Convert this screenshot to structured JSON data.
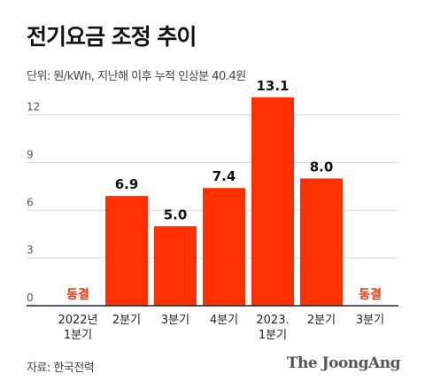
{
  "title": "전기요금 조정 추이",
  "subtitle": "단위: 원/kWh, 지난해 이후 누적 인상분 40.4원",
  "source": "자료: 한국전력",
  "logo": "The JoongAng",
  "colors": {
    "bar": "#ff3000",
    "frozen_text": "#ff3000",
    "axis": "#222222",
    "grid": "#d9d9d9",
    "tick": "#555555"
  },
  "chart_data": {
    "type": "bar",
    "categories": [
      "2022년\n1분기",
      "2분기",
      "3분기",
      "4분기",
      "2023.\n1분기",
      "2분기",
      "3분기"
    ],
    "values": [
      0,
      6.9,
      5.0,
      7.4,
      13.1,
      8.0,
      0
    ],
    "value_labels": [
      "동결",
      "6.9",
      "5.0",
      "7.4",
      "13.1",
      "8.0",
      "동결"
    ],
    "frozen": [
      true,
      false,
      false,
      false,
      false,
      false,
      true
    ],
    "yticks": [
      0,
      3,
      6,
      9,
      12
    ],
    "ylim": [
      0,
      13.5
    ],
    "grid": true
  }
}
